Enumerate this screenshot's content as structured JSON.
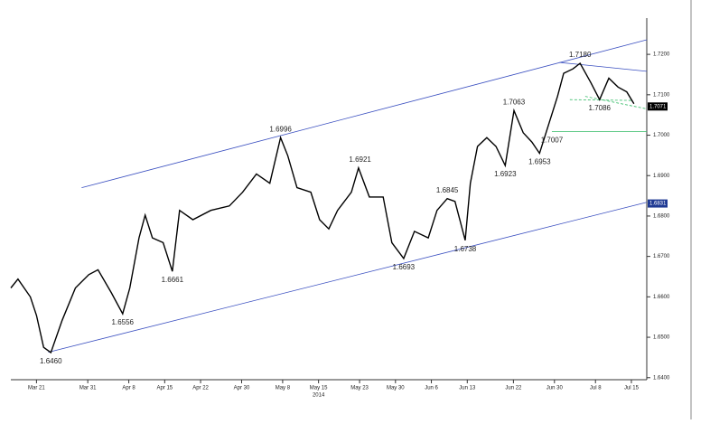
{
  "chart_data": {
    "type": "line",
    "x": [
      -5,
      -3.6,
      -1.2,
      0,
      1.4,
      2.8,
      5,
      7.6,
      10.2,
      12,
      14.6,
      16.8,
      18.2,
      20,
      21.2,
      22.6,
      24.7,
      26.5,
      27.9,
      30.5,
      34,
      37.6,
      40.2,
      42.9,
      45.5,
      47.6,
      49,
      50.8,
      53.5,
      55.2,
      57,
      58.7,
      61.4,
      62.8,
      64.9,
      67.6,
      69.3,
      71.6,
      73.7,
      76.4,
      78.1,
      80.1,
      81.6,
      83.6,
      84.6,
      86,
      87.8,
      89.6,
      91.4,
      93.1,
      94.9,
      96.6,
      98.1,
      100.2,
      101.6,
      102.8,
      104.6,
      106,
      108.1,
      109.8,
      111.6,
      113.4,
      115.1,
      116.5
    ],
    "values": [
      1.6622,
      1.6644,
      1.66,
      1.6554,
      1.6475,
      1.6462,
      1.6542,
      1.6622,
      1.6655,
      1.6667,
      1.661,
      1.6558,
      1.6622,
      1.6746,
      1.6802,
      1.6746,
      1.6734,
      1.6663,
      1.6814,
      1.6791,
      1.6814,
      1.6825,
      1.6859,
      1.6904,
      1.6881,
      1.6994,
      1.6949,
      1.687,
      1.6859,
      1.6791,
      1.6768,
      1.6814,
      1.6859,
      1.6919,
      1.6847,
      1.6847,
      1.6734,
      1.6695,
      1.6762,
      1.6746,
      1.6814,
      1.6843,
      1.6836,
      1.674,
      1.6881,
      1.6972,
      1.6994,
      1.6972,
      1.6925,
      1.7061,
      1.7006,
      1.6983,
      1.6955,
      1.704,
      1.7096,
      1.7153,
      1.7164,
      1.7178,
      1.713,
      1.7088,
      1.7141,
      1.7119,
      1.7107,
      1.7078
    ],
    "color": "#000000",
    "xlim": [
      -5,
      119
    ],
    "xticks": [
      {
        "value": 0,
        "label": "Mar 21"
      },
      {
        "value": 10,
        "label": "Mar 31"
      },
      {
        "value": 18,
        "label": "Apr 8"
      },
      {
        "value": 25,
        "label": "Apr 15"
      },
      {
        "value": 32,
        "label": "Apr 22"
      },
      {
        "value": 40,
        "label": "Apr 30"
      },
      {
        "value": 48,
        "label": "May 8"
      },
      {
        "value": 55,
        "label": "May 15"
      },
      {
        "value": 63,
        "label": "May 23"
      },
      {
        "value": 70,
        "label": "May 30"
      },
      {
        "value": 77,
        "label": "Jun 6"
      },
      {
        "value": 84,
        "label": "Jun 13"
      },
      {
        "value": 93,
        "label": "Jun 22"
      },
      {
        "value": 101,
        "label": "Jun 30"
      },
      {
        "value": 109,
        "label": "Jul 8"
      },
      {
        "value": 116,
        "label": "Jul 15"
      }
    ],
    "year": {
      "label": "2014",
      "x": 55
    },
    "ylim": [
      1.6395,
      1.7245
    ],
    "yticks": [
      {
        "value": 1.64,
        "label": "1.6400"
      },
      {
        "value": 1.65,
        "label": "1.6500"
      },
      {
        "value": 1.66,
        "label": "1.6600"
      },
      {
        "value": 1.67,
        "label": "1.6700"
      },
      {
        "value": 1.68,
        "label": "1.6800"
      },
      {
        "value": 1.69,
        "label": "1.6900"
      },
      {
        "value": 1.7,
        "label": "1.7000"
      },
      {
        "value": 1.71,
        "label": "1.7100"
      },
      {
        "value": 1.72,
        "label": "1.7200"
      }
    ],
    "annotations": [
      {
        "x": 2.8,
        "value": 1.646,
        "label": "1.6460"
      },
      {
        "x": 16.8,
        "value": 1.6556,
        "label": "1.6556"
      },
      {
        "x": 26.5,
        "value": 1.6661,
        "label": "1.6661"
      },
      {
        "x": 47.6,
        "value": 1.6996,
        "label": "1.6996"
      },
      {
        "x": 63.1,
        "value": 1.6921,
        "label": "1.6921"
      },
      {
        "x": 71.6,
        "value": 1.6693,
        "label": "1.6693"
      },
      {
        "x": 80.1,
        "value": 1.6845,
        "label": "1.6845"
      },
      {
        "x": 83.6,
        "value": 1.6738,
        "label": "1.6738"
      },
      {
        "x": 91.4,
        "value": 1.6923,
        "label": "1.6923"
      },
      {
        "x": 93.1,
        "value": 1.7063,
        "label": "1.7063"
      },
      {
        "x": 98.1,
        "value": 1.6953,
        "label": "1.6953"
      },
      {
        "x": 100.5,
        "value": 1.7007,
        "label": "1.7007"
      },
      {
        "x": 106,
        "value": 1.718,
        "label": "1.7180"
      },
      {
        "x": 109.8,
        "value": 1.7086,
        "label": "1.7086"
      }
    ],
    "lines": [
      {
        "x": [
          8.8,
          119
        ],
        "values": [
          1.687,
          1.7236
        ],
        "color": "#3a4fc0",
        "dash": false
      },
      {
        "x": [
          2.3,
          119
        ],
        "values": [
          1.6463,
          1.6834
        ],
        "color": "#3a4fc0",
        "dash": false
      },
      {
        "x": [
          102,
          119
        ],
        "values": [
          1.718,
          1.7158
        ],
        "color": "#3a4fc0",
        "dash": false
      },
      {
        "x": [
          100.5,
          119
        ],
        "values": [
          1.7009,
          1.7009
        ],
        "color": "#33bb66",
        "dash": false
      },
      {
        "x": [
          104,
          116
        ],
        "values": [
          1.7088,
          1.7086
        ],
        "color": "#33bb66",
        "dash": true
      },
      {
        "x": [
          107,
          119
        ],
        "values": [
          1.7096,
          1.7065
        ],
        "color": "#33bb66",
        "dash": true
      }
    ],
    "last_labels": [
      {
        "value": 1.7071,
        "label": "1.7071",
        "color": "#000000"
      },
      {
        "value": 1.6831,
        "label": "1.6831",
        "color": "#1f3a93"
      }
    ]
  }
}
